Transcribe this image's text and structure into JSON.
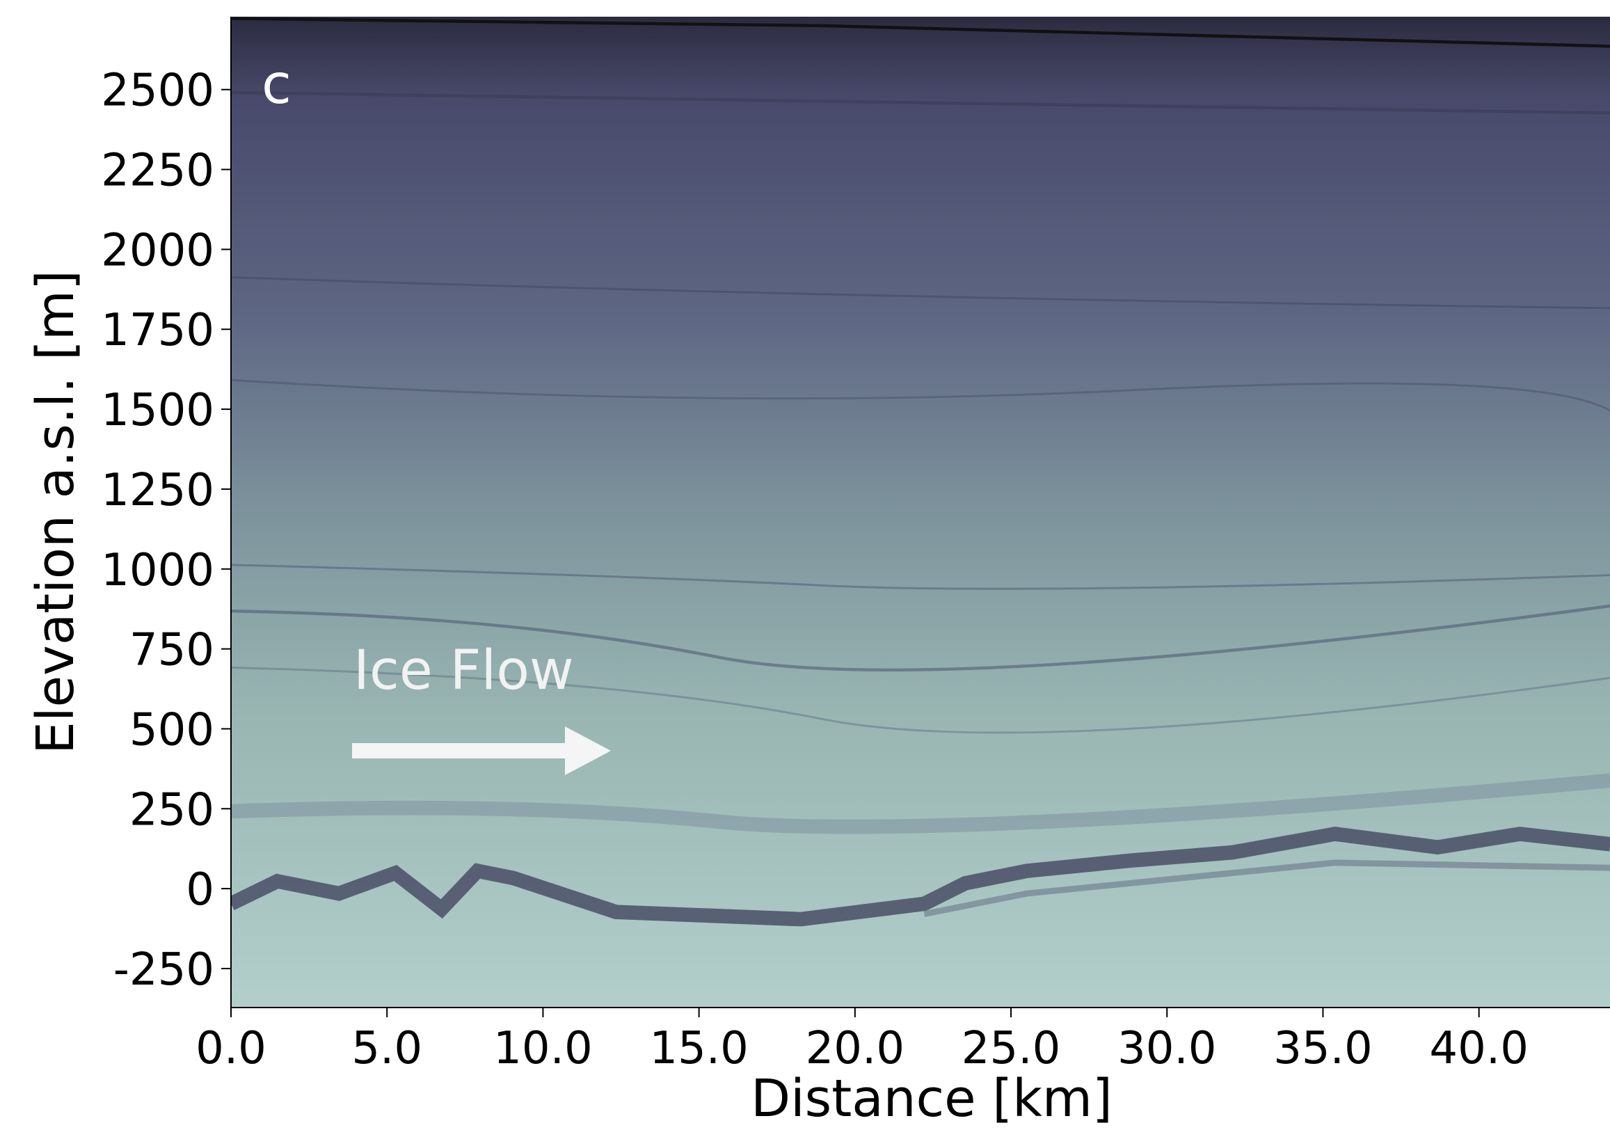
{
  "chart_data": {
    "type": "radargram",
    "panel_label": "c",
    "annotation": "Ice Flow",
    "x_label": "Distance [km]",
    "y_label": "Elevation a.s.l. [m]",
    "xlim": [
      0,
      44.2
    ],
    "ylim": [
      -372,
      2728
    ],
    "xticks": [
      {
        "value": 0,
        "label": "0.0"
      },
      {
        "value": 5,
        "label": "5.0"
      },
      {
        "value": 10,
        "label": "10.0"
      },
      {
        "value": 15,
        "label": "15.0"
      },
      {
        "value": 20,
        "label": "20.0"
      },
      {
        "value": 25,
        "label": "25.0"
      },
      {
        "value": 30,
        "label": "30.0"
      },
      {
        "value": 35,
        "label": "35.0"
      },
      {
        "value": 40,
        "label": "40.0"
      }
    ],
    "yticks": [
      -250,
      0,
      250,
      500,
      750,
      1000,
      1250,
      1500,
      1750,
      2000,
      2250,
      2500
    ]
  }
}
